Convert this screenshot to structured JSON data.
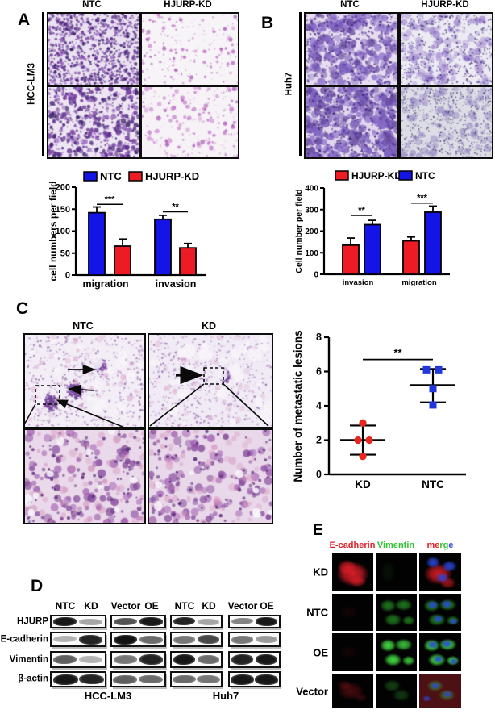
{
  "figure": {
    "panels": {
      "a": {
        "label": "A",
        "cell_line": "HCC-LM3",
        "col_headers": [
          "NTC",
          "HJURP-KD"
        ]
      },
      "b": {
        "label": "B",
        "cell_line": "Huh7",
        "col_headers": [
          "NTC",
          "HJURP-KD"
        ]
      },
      "c": {
        "label": "C",
        "col_headers": [
          "NTC",
          "KD"
        ]
      },
      "d": {
        "label": "D",
        "lane_headers": [
          "NTC",
          "KD",
          "Vector",
          "OE",
          "NTC",
          "KD",
          "Vector",
          "OE"
        ],
        "row_labels": [
          "HJURP",
          "E-cadherin",
          "Vimentin",
          "β-actin"
        ],
        "group_labels": [
          "HCC-LM3",
          "Huh7"
        ],
        "band_intensities": [
          [
            [
              0.95,
              0.35
            ],
            [
              0.7,
              0.95
            ],
            [
              0.9,
              0.35
            ],
            [
              0.5,
              0.95
            ]
          ],
          [
            [
              0.3,
              0.9
            ],
            [
              0.97,
              0.6
            ],
            [
              0.55,
              0.75
            ],
            [
              0.55,
              0.4
            ]
          ],
          [
            [
              0.65,
              0.3
            ],
            [
              0.55,
              0.9
            ],
            [
              0.95,
              0.6
            ],
            [
              0.9,
              0.95
            ]
          ],
          [
            [
              0.95,
              0.9
            ],
            [
              0.65,
              0.6
            ],
            [
              0.6,
              0.55
            ],
            [
              0.95,
              0.95
            ]
          ]
        ]
      },
      "e": {
        "label": "E",
        "col_headers": [
          {
            "text": "E-cadherin",
            "color": "#e02028"
          },
          {
            "text": "Vimentin",
            "color": "#2fc12f"
          }
        ],
        "merge_header": {
          "text": "merge",
          "letter_colors": [
            "#e02028",
            "#e02028",
            "#2fc12f",
            "#2fc12f",
            "#2a46e0"
          ]
        },
        "row_labels": [
          "KD",
          "NTC",
          "OE",
          "Vector"
        ],
        "signals": [
          {
            "row": "KD",
            "e_cadherin": "strong",
            "vimentin": "none",
            "merge": [
              "red",
              "blue"
            ]
          },
          {
            "row": "NTC",
            "e_cadherin": "none",
            "vimentin": "medium",
            "merge": [
              "green",
              "blue"
            ]
          },
          {
            "row": "OE",
            "e_cadherin": "none",
            "vimentin": "strong",
            "merge": [
              "green",
              "blue"
            ]
          },
          {
            "row": "Vector",
            "e_cadherin": "faint",
            "vimentin": "dim",
            "merge": [
              "red",
              "green",
              "blue"
            ]
          }
        ]
      }
    }
  },
  "colors": {
    "bar_blue": "#1414e6",
    "bar_red": "#ed1c24",
    "scatter_red": "#e8281e",
    "scatter_blue": "#2137de"
  },
  "chart_data": [
    {
      "id": "panel-a-bar-chart",
      "type": "bar",
      "title": "",
      "xlabel": "",
      "ylabel": "cell numbers per field",
      "ylim": [
        0,
        200
      ],
      "yticks": [
        0,
        50,
        100,
        150,
        200
      ],
      "categories": [
        "migration",
        "invasion"
      ],
      "series": [
        {
          "name": "NTC",
          "color": "#1414e6",
          "values": [
            142,
            127
          ],
          "errors": [
            13,
            9
          ]
        },
        {
          "name": "HJURP-KD",
          "color": "#ed1c24",
          "values": [
            66,
            62
          ],
          "errors": [
            16,
            10
          ]
        }
      ],
      "significance": [
        {
          "category": "migration",
          "stars": "***",
          "line_y": 161
        },
        {
          "category": "invasion",
          "stars": "**",
          "line_y": 144
        }
      ],
      "legend_position": "top",
      "grid": false
    },
    {
      "id": "panel-b-bar-chart",
      "type": "bar",
      "title": "",
      "xlabel": "",
      "ylabel": "Cell number per field",
      "ylim": [
        0,
        400
      ],
      "yticks": [
        0,
        100,
        200,
        300,
        400
      ],
      "categories": [
        "invasion",
        "migration"
      ],
      "series": [
        {
          "name": "HJURP-KD",
          "color": "#ed1c24",
          "values": [
            135,
            155
          ],
          "errors": [
            33,
            18
          ]
        },
        {
          "name": "NTC",
          "color": "#1414e6",
          "values": [
            230,
            288
          ],
          "errors": [
            20,
            28
          ]
        }
      ],
      "significance": [
        {
          "category": "invasion",
          "stars": "**",
          "line_y": 273
        },
        {
          "category": "migration",
          "stars": "***",
          "line_y": 330
        }
      ],
      "legend_position": "top",
      "grid": false
    },
    {
      "id": "panel-c-scatter",
      "type": "scatter",
      "title": "",
      "xlabel": "",
      "ylabel": "Number of metastatic lesions",
      "ylim": [
        0,
        8
      ],
      "yticks": [
        0,
        2,
        4,
        6,
        8
      ],
      "groups": [
        {
          "name": "KD",
          "marker": "circle",
          "color": "#e8281e",
          "points": [
            3.0,
            2.0,
            2.0,
            1.05
          ],
          "jitter": [
            0,
            -6,
            8,
            0
          ],
          "mean": 2.0,
          "sd_low": 1.15,
          "sd_high": 2.85
        },
        {
          "name": "NTC",
          "marker": "square",
          "color": "#2137de",
          "points": [
            6.1,
            6.1,
            5.0,
            4.05
          ],
          "jitter": [
            -8,
            7,
            0,
            0
          ],
          "mean": 5.2,
          "sd_low": 4.2,
          "sd_high": 6.15
        }
      ],
      "significance": {
        "stars": "**",
        "line_y": 6.7
      },
      "grid": false
    }
  ]
}
